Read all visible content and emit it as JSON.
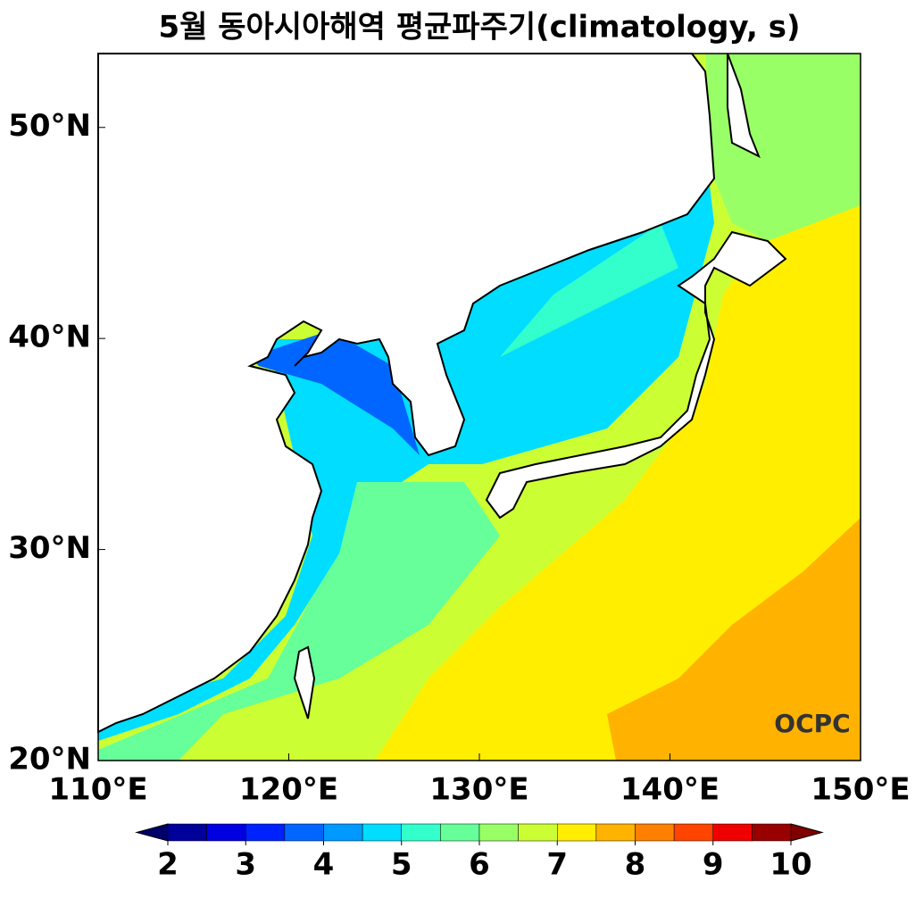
{
  "chart_data": {
    "type": "map",
    "title": "5월 동아시아해역 평균파주기(climatology, s)",
    "xlim": [
      110,
      150
    ],
    "ylim": [
      20,
      53.5
    ],
    "xticks": [
      {
        "value": 110,
        "label": "110°E"
      },
      {
        "value": 120,
        "label": "120°E"
      },
      {
        "value": 130,
        "label": "130°E"
      },
      {
        "value": 140,
        "label": "140°E"
      },
      {
        "value": 150,
        "label": "150°E"
      }
    ],
    "yticks": [
      {
        "value": 20,
        "label": "20°N"
      },
      {
        "value": 30,
        "label": "30°N"
      },
      {
        "value": 40,
        "label": "40°N"
      },
      {
        "value": 50,
        "label": "50°N"
      }
    ],
    "logo": "OCPC",
    "colorbar": {
      "levels": [
        2,
        2.5,
        3,
        3.5,
        4,
        4.5,
        5,
        5.5,
        6,
        6.5,
        7,
        7.5,
        8,
        8.5,
        9,
        9.5,
        10
      ],
      "colors": [
        "#00009a",
        "#0000e0",
        "#0022ff",
        "#0066ff",
        "#0099ff",
        "#00ddff",
        "#33ffcc",
        "#66ff99",
        "#99ff66",
        "#ccff33",
        "#ffee00",
        "#ffb300",
        "#ff8000",
        "#ff4400",
        "#ee0000",
        "#990000"
      ],
      "under_color": "#00006a",
      "over_color": "#800000",
      "ticks": [
        2,
        3,
        4,
        5,
        6,
        7,
        8,
        9,
        10
      ]
    }
  }
}
